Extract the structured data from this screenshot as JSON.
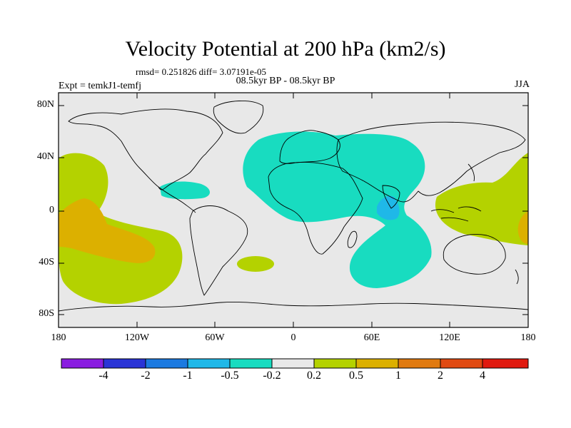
{
  "title": "Velocity Potential at 200 hPa (km2/s)",
  "stats": "rmsd= 0.251826  diff= 3.07191e-05",
  "period": "08.5kyr BP - 08.5kyr BP",
  "experiment": "Expt = temkJ1-temfj",
  "season": "JJA",
  "y_axis_labels": [
    "80N",
    "40N",
    "0",
    "40S",
    "80S"
  ],
  "x_axis_labels": [
    "180",
    "120W",
    "60W",
    "0",
    "60E",
    "120E",
    "180"
  ],
  "colorbar": {
    "labels": [
      "-4",
      "-2",
      "-1",
      "-0.5",
      "-0.2",
      "0.2",
      "0.5",
      "1",
      "2",
      "4"
    ],
    "colors": [
      "#8a1de0",
      "#2a34d6",
      "#1c7ae0",
      "#1fb8e8",
      "#18dcc0",
      "#e8e8e8",
      "#b4d200",
      "#dcb000",
      "#e07a10",
      "#e04a12",
      "#e01a10"
    ]
  },
  "field_colors": {
    "background": "#e8e8e8",
    "neg_small": "#18dcc0",
    "neg_mid": "#1fb8e8",
    "pos_small": "#b4d200",
    "pos_mid": "#dcb000"
  }
}
